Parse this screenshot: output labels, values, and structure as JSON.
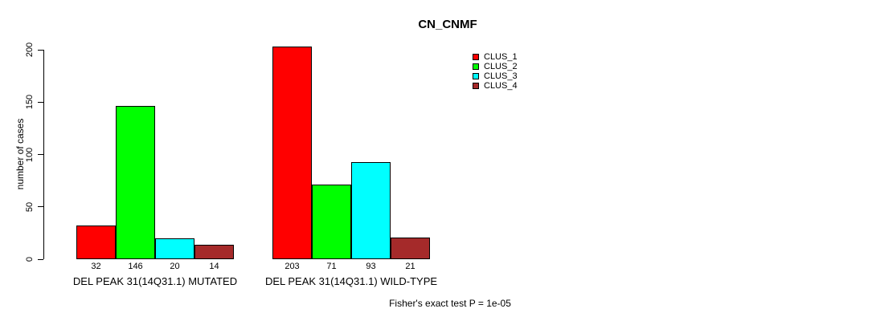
{
  "figure": {
    "title": "CN_CNMF",
    "footnote": "Fisher's exact test P = 1e-05"
  },
  "chart_data": {
    "type": "bar",
    "title": "CN_CNMF",
    "ylabel": "number of cases",
    "xlabel": "",
    "ylim": [
      0,
      200
    ],
    "yticks": [
      0,
      50,
      100,
      150,
      200
    ],
    "grid": false,
    "legend_position": "top-right",
    "bar_value_labels": true,
    "categories": [
      "DEL PEAK 31(14Q31.1) MUTATED",
      "DEL PEAK 31(14Q31.1) WILD-TYPE"
    ],
    "series": [
      {
        "name": "CLUS_1",
        "color": "#ff0000",
        "values": [
          32,
          203
        ]
      },
      {
        "name": "CLUS_2",
        "color": "#00ff00",
        "values": [
          146,
          71
        ]
      },
      {
        "name": "CLUS_3",
        "color": "#00ffff",
        "values": [
          20,
          93
        ]
      },
      {
        "name": "CLUS_4",
        "color": "#a52a2a",
        "values": [
          14,
          21
        ]
      }
    ],
    "annotation": "Fisher's exact test P = 1e-05"
  }
}
